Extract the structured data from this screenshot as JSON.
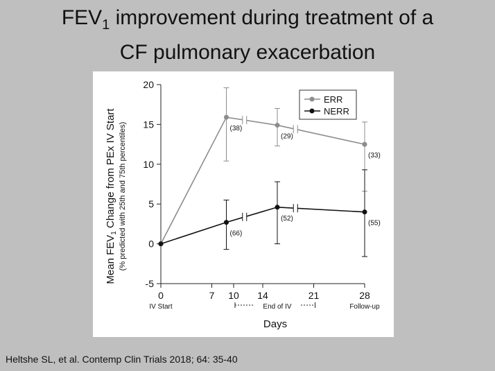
{
  "slide": {
    "title_line1_pre": "FEV",
    "title_line1_sub": "1",
    "title_line1_post": " improvement during treatment of a",
    "title_line2": "CF pulmonary exacerbation",
    "citation": "Heltshe SL, et al. Contemp Clin Trials 2018; 64: 35-40"
  },
  "chart_data": {
    "type": "line",
    "title": "",
    "xlabel": "Days",
    "ylabel_line1_pre": "Mean FEV",
    "ylabel_line1_sub": "1",
    "ylabel_line1_post": " Change from PEx IV Start",
    "ylabel_line2": "(% predicted with 25th and 75th percentiles)",
    "xticks": [
      0,
      7,
      10,
      14,
      21,
      28
    ],
    "yticks": [
      -5,
      0,
      5,
      10,
      15,
      20
    ],
    "xlim": [
      0,
      28
    ],
    "ylim": [
      -5,
      20
    ],
    "x_sublabels": {
      "iv_start": "IV Start",
      "end_of_iv": "End of IV",
      "follow_up": "Follow-up"
    },
    "legend_position": "top-right",
    "grid": false,
    "series": [
      {
        "name": "ERR",
        "color": "#8c8c8c",
        "x": [
          0,
          9,
          16,
          28
        ],
        "y": [
          0,
          15.9,
          14.9,
          12.5
        ],
        "q25": [
          null,
          10.4,
          12.3,
          6.6
        ],
        "q75": [
          null,
          19.6,
          17.0,
          15.3
        ],
        "n_labels": [
          "",
          "(38)",
          "(29)",
          "(33)"
        ]
      },
      {
        "name": "NERR",
        "color": "#111111",
        "x": [
          0,
          9,
          16,
          28
        ],
        "y": [
          0,
          2.7,
          4.6,
          4.0
        ],
        "q25": [
          null,
          -0.7,
          0.0,
          -1.6
        ],
        "q75": [
          null,
          5.5,
          7.8,
          9.3
        ],
        "n_labels": [
          "",
          "(66)",
          "(52)",
          "(55)"
        ]
      }
    ]
  }
}
